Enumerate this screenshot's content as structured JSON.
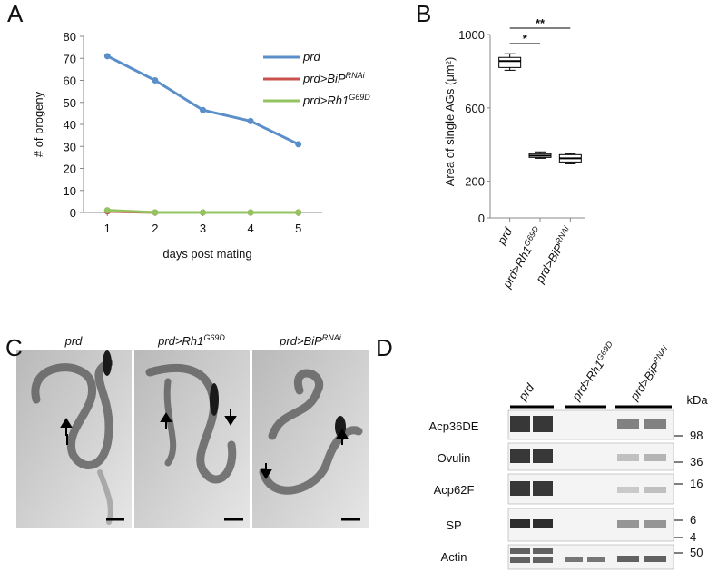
{
  "chart_data": [
    {
      "type": "line",
      "panel_label": "A",
      "xlabel": "days post mating",
      "ylabel": "# of progeny",
      "x": [
        1,
        2,
        3,
        4,
        5
      ],
      "xlim": [
        0.5,
        5.5
      ],
      "xticks": [
        1,
        2,
        3,
        4,
        5
      ],
      "ylim": [
        0,
        80
      ],
      "yticks": [
        0,
        10,
        20,
        30,
        40,
        50,
        60,
        70,
        80
      ],
      "legend": "top-right",
      "series": [
        {
          "name": "prd",
          "color": "#5b8fc9",
          "values": [
            71,
            60,
            46.5,
            41.5,
            31
          ]
        },
        {
          "name": "prd>BiP",
          "name_sup": "RNAi",
          "color": "#c9504b",
          "values": [
            0.5,
            0,
            0,
            0,
            0
          ]
        },
        {
          "name": "prd>Rh1",
          "name_sup": "G69D",
          "color": "#93c461",
          "values": [
            1,
            0,
            0,
            0,
            0
          ]
        }
      ]
    },
    {
      "type": "box",
      "panel_label": "B",
      "ylabel": "Area of single AGs (μm²)",
      "categories": [
        {
          "label": "prd"
        },
        {
          "label": "prd>Rh1",
          "sup": "G69D"
        },
        {
          "label": "prd>BiP",
          "sup": "RNAi"
        }
      ],
      "ylim": [
        0,
        1000
      ],
      "yticks": [
        0,
        200,
        600,
        1000
      ],
      "boxes": [
        {
          "whislo": 805,
          "q1": 820,
          "med": 855,
          "q3": 875,
          "whishi": 895
        },
        {
          "whislo": 325,
          "q1": 330,
          "med": 340,
          "q3": 350,
          "whishi": 360
        },
        {
          "whislo": 295,
          "q1": 305,
          "med": 325,
          "q3": 345,
          "whishi": 350
        }
      ],
      "annotations": [
        "*",
        "**"
      ]
    }
  ],
  "panel_c": {
    "panel_label": "C",
    "images": [
      {
        "label": "prd"
      },
      {
        "label": "prd>Rh1",
        "sup": "G69D"
      },
      {
        "label": "prd>BiP",
        "sup": "RNAi"
      }
    ]
  },
  "panel_d": {
    "panel_label": "D",
    "lanes": [
      {
        "label": "prd"
      },
      {
        "label": "prd>Rh1",
        "sup": "G69D"
      },
      {
        "label": "prd>BiP",
        "sup": "RNAi"
      }
    ],
    "rows": [
      "Acp36DE",
      "Ovulin",
      "Acp62F",
      "SP",
      "Actin"
    ],
    "unit": "kDa",
    "markers": [
      "98",
      "36",
      "16",
      "6",
      "4",
      "50"
    ]
  }
}
